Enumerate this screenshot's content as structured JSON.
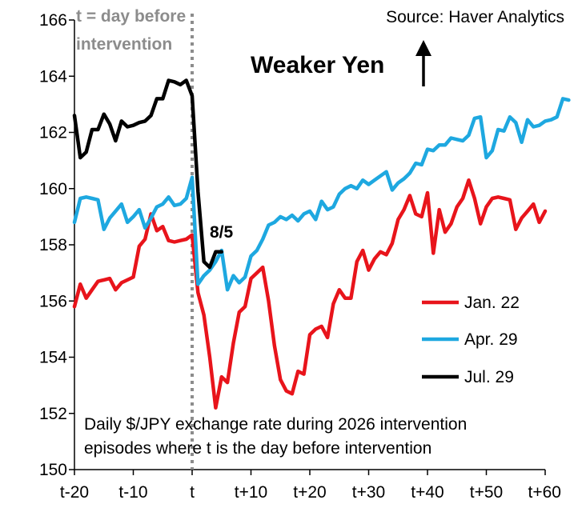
{
  "chart_data": {
    "type": "line",
    "title": "",
    "xlabel": "",
    "ylabel": "",
    "source": "Source: Haver Analytics",
    "direction_label": "Weaker Yen",
    "marker_label": "t = day before intervention",
    "marker_line1": "t = day before",
    "marker_line2": "intervention",
    "marker_x": 0,
    "note_line1": "Daily $/JPY exchange rate during 2026 intervention",
    "note_line2": "episodes where t is the day before intervention",
    "endpoint_label": "8/5",
    "endpoint_label_series": "Jul. 29",
    "x_range": [
      -20,
      60
    ],
    "y_range": [
      150,
      166
    ],
    "y_ticks": [
      150,
      152,
      154,
      156,
      158,
      160,
      162,
      164,
      166
    ],
    "x_ticks": [
      {
        "value": -20,
        "label": "t-20"
      },
      {
        "value": -10,
        "label": "t-10"
      },
      {
        "value": 0,
        "label": "t"
      },
      {
        "value": 10,
        "label": "t+10"
      },
      {
        "value": 20,
        "label": "t+20"
      },
      {
        "value": 30,
        "label": "t+30"
      },
      {
        "value": 40,
        "label": "t+40"
      },
      {
        "value": 50,
        "label": "t+50"
      },
      {
        "value": 60,
        "label": "t+60"
      }
    ],
    "grid": false,
    "legend_position": "bottom-right",
    "series": [
      {
        "name": "Jan. 22",
        "color": "#e8141b",
        "x_start": -20,
        "values": [
          155.8,
          156.6,
          156.1,
          156.4,
          156.7,
          156.75,
          156.8,
          156.4,
          156.65,
          156.75,
          156.85,
          157.95,
          158.2,
          159.1,
          158.5,
          158.65,
          158.15,
          158.1,
          158.15,
          158.2,
          158.35,
          156.3,
          155.5,
          154.0,
          152.2,
          153.3,
          153.1,
          154.5,
          155.6,
          155.8,
          156.8,
          157.0,
          157.2,
          156.0,
          154.4,
          153.2,
          152.8,
          152.7,
          153.5,
          153.4,
          154.8,
          155.0,
          155.1,
          154.7,
          155.9,
          156.4,
          156.1,
          156.1,
          157.4,
          157.8,
          157.1,
          157.5,
          157.75,
          157.65,
          158.05,
          158.9,
          159.25,
          159.75,
          159.1,
          159.0,
          159.85,
          157.7,
          159.25,
          158.45,
          158.75,
          159.35,
          159.65,
          160.3,
          159.65,
          158.75,
          159.35,
          159.65,
          159.7,
          159.65,
          159.6,
          158.55,
          158.95,
          159.2,
          159.45,
          158.8,
          159.2
        ]
      },
      {
        "name": "Apr. 29",
        "color": "#1ea8e0",
        "x_start": -20,
        "values": [
          158.8,
          159.65,
          159.7,
          159.65,
          159.6,
          158.55,
          158.95,
          159.2,
          159.45,
          158.8,
          159.0,
          159.25,
          158.6,
          158.95,
          159.35,
          159.45,
          159.7,
          159.4,
          159.45,
          159.65,
          160.4,
          156.6,
          156.9,
          157.1,
          157.4,
          157.8,
          156.4,
          156.9,
          156.65,
          156.85,
          157.6,
          157.8,
          158.2,
          158.7,
          158.8,
          159.0,
          158.9,
          159.05,
          158.85,
          159.1,
          159.2,
          158.9,
          159.55,
          159.25,
          159.35,
          159.8,
          160.0,
          160.1,
          160.0,
          160.3,
          160.15,
          160.3,
          160.45,
          160.6,
          159.95,
          160.2,
          160.35,
          160.55,
          160.9,
          160.85,
          161.4,
          161.35,
          161.55,
          161.55,
          161.8,
          161.75,
          161.7,
          161.9,
          162.5,
          162.55,
          161.1,
          161.35,
          162.1,
          162.05,
          162.55,
          162.35,
          161.65,
          162.45,
          162.2,
          162.25,
          162.4,
          162.45,
          162.55,
          163.2,
          163.15
        ]
      },
      {
        "name": "Jul. 29",
        "color": "#000000",
        "x_start": -20,
        "values": [
          162.6,
          161.1,
          161.3,
          162.1,
          162.1,
          162.65,
          162.3,
          161.7,
          162.4,
          162.2,
          162.25,
          162.35,
          162.4,
          162.6,
          163.2,
          163.2,
          163.85,
          163.8,
          163.7,
          163.85,
          163.3,
          159.9,
          157.4,
          157.2,
          157.75,
          157.75
        ]
      }
    ]
  }
}
